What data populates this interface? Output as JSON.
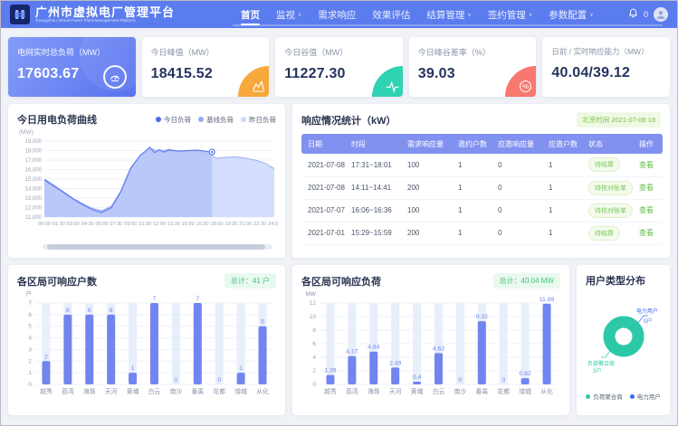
{
  "app": {
    "title": "广州市虚拟电厂管理平台",
    "subtitle": "Guangzhou Virtual Power Plant Management Platform",
    "notification_count": "0"
  },
  "nav": {
    "items": [
      {
        "label": "首页",
        "active": true,
        "caret": false
      },
      {
        "label": "监视",
        "active": false,
        "caret": true
      },
      {
        "label": "需求响应",
        "active": false,
        "caret": false
      },
      {
        "label": "效果评估",
        "active": false,
        "caret": false
      },
      {
        "label": "结算管理",
        "active": false,
        "caret": true
      },
      {
        "label": "签约管理",
        "active": false,
        "caret": true
      },
      {
        "label": "参数配置",
        "active": false,
        "caret": true
      }
    ]
  },
  "kpis": [
    {
      "label": "电网实时总负荷（MW）",
      "value": "17603.67",
      "icon": "gauge-icon",
      "accent": "#5b7cee"
    },
    {
      "label": "今日峰值（MW）",
      "value": "18415.52",
      "icon": "peak-chart-icon",
      "accent": "#f7a93c"
    },
    {
      "label": "今日谷值（MW）",
      "value": "11227.30",
      "icon": "pulse-icon",
      "accent": "#2fd3b4"
    },
    {
      "label": "今日峰谷差率（%）",
      "value": "39.03",
      "icon": "percent-icon",
      "accent": "#f8786f"
    },
    {
      "label": "日前 / 实时响应能力（MW）",
      "value": "40.04/39.12",
      "icon": "",
      "accent": ""
    }
  ],
  "load_panel": {
    "title": "今日用电负荷曲线"
  },
  "response_panel": {
    "title": "响应情况统计（kW）",
    "time_badge": "北京时间 2021-07-08 18",
    "headers": [
      "日期",
      "时段",
      "需求响应量",
      "邀约户数",
      "应邀响应量",
      "应邀户数",
      "状态",
      "操作"
    ],
    "action_label": "查看",
    "rows": [
      {
        "date": "2021-07-08",
        "period": "17:31~18:01",
        "demand": "100",
        "invited": "1",
        "responded": "0",
        "responded_users": "1",
        "status": "待结算"
      },
      {
        "date": "2021-07-08",
        "period": "14:11~14:41",
        "demand": "200",
        "invited": "1",
        "responded": "0",
        "responded_users": "1",
        "status": "待核对账单"
      },
      {
        "date": "2021-07-07",
        "period": "16:06~16:36",
        "demand": "100",
        "invited": "1",
        "responded": "0",
        "responded_users": "1",
        "status": "待核对账单"
      },
      {
        "date": "2021-07-01",
        "period": "15:29~15:59",
        "demand": "200",
        "invited": "1",
        "responded": "0",
        "responded_users": "1",
        "status": "待结算"
      }
    ]
  },
  "district_users_panel": {
    "title": "各区局可响应户数"
  },
  "district_load_panel": {
    "title": "各区局可响应负荷"
  },
  "user_type_panel": {
    "title": "用户类型分布"
  },
  "chart_data": [
    {
      "id": "load_curve",
      "type": "area",
      "title": "今日用电负荷曲线",
      "ylabel": "(MW)",
      "ylim": [
        11000,
        19000
      ],
      "ytick_step": 1000,
      "x_ticks": [
        "00:00",
        "01:30",
        "03:00",
        "04:30",
        "06:00",
        "07:30",
        "09:00",
        "10:30",
        "12:00",
        "13:30",
        "15:00",
        "16:30",
        "18:00",
        "19:30",
        "21:00",
        "22:30",
        "24:00"
      ],
      "legend": [
        {
          "name": "今日负荷",
          "color": "#4a6bee"
        },
        {
          "name": "基线负荷",
          "color": "#96a9f4"
        },
        {
          "name": "昨日负荷",
          "color": "#ccd7fa"
        }
      ],
      "series": [
        {
          "name": "昨日负荷",
          "color": "#c9d4f9",
          "fill": "#e1e8fc",
          "fill_opacity": 0.9,
          "width": 1,
          "x": [
            0,
            1,
            2,
            3,
            4,
            5,
            6,
            7,
            8,
            9,
            10,
            11,
            12,
            13,
            14,
            15,
            16,
            17,
            18,
            19,
            20,
            21,
            22,
            23,
            24
          ],
          "values": [
            15050,
            14400,
            13700,
            13000,
            12450,
            11950,
            11700,
            12200,
            13800,
            16200,
            17400,
            18150,
            17950,
            18050,
            17900,
            17950,
            17850,
            17600,
            17100,
            17250,
            17300,
            17150,
            16950,
            16650,
            16050
          ]
        },
        {
          "name": "基线负荷",
          "color": "#9fb1f5",
          "fill": "#cfd9fb",
          "fill_opacity": 0.8,
          "width": 1,
          "x": [
            0,
            1,
            2,
            3,
            4,
            5,
            6,
            7,
            8,
            9,
            10,
            11,
            12,
            13,
            14,
            15,
            16,
            17,
            18,
            19,
            20,
            21,
            22,
            23,
            24
          ],
          "values": [
            15000,
            14350,
            13650,
            12950,
            12400,
            11900,
            11650,
            12100,
            13750,
            16150,
            17450,
            18250,
            17900,
            18150,
            17900,
            18000,
            17900,
            17700,
            17200,
            17300,
            17350,
            17200,
            17000,
            16700,
            16100
          ]
        },
        {
          "name": "今日负荷",
          "color": "#5d7bee",
          "fill": "#b5c4f8",
          "fill_opacity": 0.85,
          "width": 1.2,
          "x": [
            0,
            1,
            2,
            3,
            4,
            5,
            5.5,
            6,
            7,
            8,
            9,
            10,
            10.5,
            11,
            11.5,
            12,
            12.5,
            13,
            14,
            15,
            16,
            17,
            17.5
          ],
          "values": [
            14900,
            14250,
            13600,
            12900,
            12300,
            11800,
            11600,
            11500,
            12000,
            13700,
            16100,
            17500,
            17900,
            18350,
            17800,
            18100,
            17850,
            18050,
            17950,
            18000,
            18050,
            17900,
            17850
          ]
        }
      ]
    },
    {
      "id": "district_users",
      "type": "bar",
      "title": "各区局可响应户数",
      "unit": "户",
      "ylim": [
        0,
        7
      ],
      "ytick_step": 1,
      "categories": [
        "越秀",
        "荔湾",
        "海珠",
        "天河",
        "黄埔",
        "白云",
        "南沙",
        "番禺",
        "花都",
        "增城",
        "从化"
      ],
      "values": [
        2,
        6,
        6,
        6,
        1,
        7,
        0,
        7,
        0,
        1,
        5
      ],
      "labels": [
        "2",
        "6",
        "6",
        "6",
        "1",
        "7",
        "0",
        "7",
        "0",
        "1",
        "5"
      ],
      "total": "总计：41 户"
    },
    {
      "id": "district_load",
      "type": "bar",
      "title": "各区局可响应负荷",
      "unit": "MW",
      "ylim": [
        0,
        12
      ],
      "ytick_step": 2,
      "categories": [
        "越秀",
        "荔湾",
        "海珠",
        "天河",
        "黄埔",
        "白云",
        "南沙",
        "番禺",
        "花都",
        "增城",
        "从化"
      ],
      "values": [
        1.39,
        4.17,
        4.84,
        2.49,
        0.4,
        4.62,
        0,
        9.32,
        0,
        0.92,
        11.89
      ],
      "labels": [
        "1.39",
        "4.17",
        "4.84",
        "2.49",
        "0.4",
        "4.62",
        "0",
        "9.32",
        "0",
        "0.92",
        "11.89"
      ],
      "total": "总计：40.04 MW"
    },
    {
      "id": "user_type",
      "type": "pie",
      "title": "用户类型分布",
      "slices": [
        {
          "name": "负荷聚合商",
          "value": 3,
          "count_label": "3户",
          "color": "#2dc8a8"
        },
        {
          "name": "电力用户",
          "value": 0,
          "count_label": "0户",
          "color": "#3a6af0"
        }
      ]
    }
  ]
}
